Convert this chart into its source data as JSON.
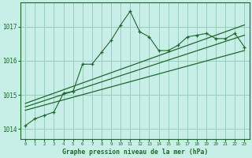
{
  "title": "Graphe pression niveau de la mer (hPa)",
  "bg_color": "#c8eee8",
  "grid_color": "#99ccbb",
  "line_color": "#1a6b2a",
  "xlim": [
    -0.5,
    23.5
  ],
  "ylim": [
    1013.7,
    1017.7
  ],
  "yticks": [
    1014,
    1015,
    1016,
    1017
  ],
  "xticks": [
    0,
    1,
    2,
    3,
    4,
    5,
    6,
    7,
    8,
    9,
    10,
    11,
    12,
    13,
    14,
    15,
    16,
    17,
    18,
    19,
    20,
    21,
    22,
    23
  ],
  "main_series": {
    "x": [
      0,
      1,
      2,
      3,
      4,
      5,
      6,
      7,
      8,
      9,
      10,
      11,
      12,
      13,
      14,
      15,
      16,
      17,
      18,
      19,
      20,
      21,
      22,
      23
    ],
    "y": [
      1014.1,
      1014.3,
      1014.4,
      1014.5,
      1015.05,
      1015.1,
      1015.9,
      1015.9,
      1016.25,
      1016.6,
      1017.05,
      1017.45,
      1016.85,
      1016.7,
      1016.3,
      1016.3,
      1016.45,
      1016.7,
      1016.75,
      1016.8,
      1016.65,
      1016.65,
      1016.8,
      1016.4
    ]
  },
  "trend_lines": [
    {
      "x0": 0,
      "y0": 1014.55,
      "x1": 23,
      "y1": 1016.3
    },
    {
      "x0": 0,
      "y0": 1014.65,
      "x1": 23,
      "y1": 1016.75
    },
    {
      "x0": 0,
      "y0": 1014.75,
      "x1": 23,
      "y1": 1017.05
    }
  ]
}
